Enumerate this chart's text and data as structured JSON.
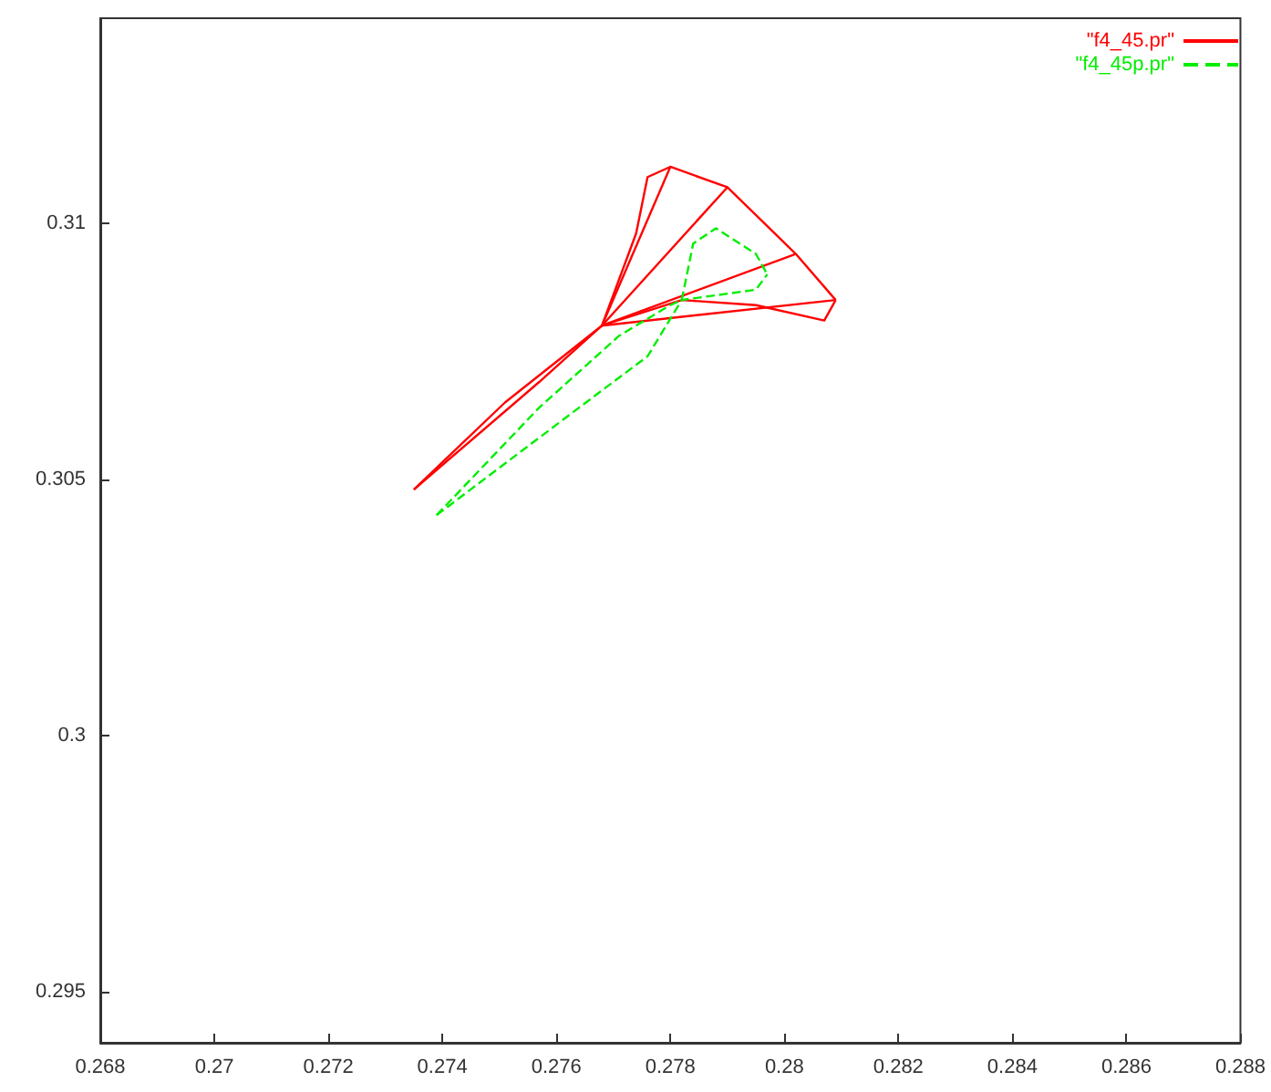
{
  "chart_data": {
    "type": "line",
    "xlim": [
      0.268,
      0.288
    ],
    "ylim": [
      0.294,
      0.314
    ],
    "xticks": [
      0.268,
      0.27,
      0.272,
      0.274,
      0.276,
      0.278,
      0.28,
      0.282,
      0.284,
      0.286,
      0.288
    ],
    "yticks": [
      0.295,
      0.3,
      0.305,
      0.31
    ],
    "grid": false,
    "legend": "top right",
    "marker": "none",
    "series": [
      {
        "name": "\"f4_45.pr\"",
        "color": "#ff0000",
        "line_style": "solid",
        "x": [
          0.2735,
          0.2757,
          0.2768,
          0.2774,
          0.2776,
          0.278,
          0.279,
          0.2802,
          0.2809
        ],
        "values": [
          0.3048,
          0.3069,
          0.308,
          0.3098,
          0.3109,
          0.3111,
          0.3107,
          0.3094,
          0.3085
        ]
      },
      {
        "color": "#ff0000",
        "line_style": "solid",
        "x": [
          0.2735,
          0.2751,
          0.2768,
          0.2782,
          0.2795,
          0.2807,
          0.2809
        ],
        "values": [
          0.3048,
          0.3065,
          0.308,
          0.3085,
          0.3084,
          0.3081,
          0.3085
        ]
      },
      {
        "color": "#ff0000",
        "line_style": "solid",
        "x": [
          0.2768,
          0.278
        ],
        "values": [
          0.308,
          0.3111
        ]
      },
      {
        "color": "#ff0000",
        "line_style": "solid",
        "x": [
          0.2768,
          0.279
        ],
        "values": [
          0.308,
          0.3107
        ]
      },
      {
        "color": "#ff0000",
        "line_style": "solid",
        "x": [
          0.2768,
          0.2802
        ],
        "values": [
          0.308,
          0.3094
        ]
      },
      {
        "color": "#ff0000",
        "line_style": "solid",
        "x": [
          0.2768,
          0.2809
        ],
        "values": [
          0.308,
          0.3085
        ]
      },
      {
        "name": "\"f4_45p.pr\"",
        "color": "#00ee00",
        "line_style": "dashed",
        "x": [
          0.2739,
          0.2757,
          0.2771,
          0.278,
          0.2782,
          0.2784,
          0.2788,
          0.2795,
          0.2797
        ],
        "values": [
          0.3043,
          0.3064,
          0.3078,
          0.3084,
          0.3085,
          0.3096,
          0.3099,
          0.3094,
          0.309
        ]
      },
      {
        "color": "#00ee00",
        "line_style": "dashed",
        "x": [
          0.2739,
          0.2764,
          0.2776,
          0.2782,
          0.2795,
          0.2797
        ],
        "values": [
          0.3043,
          0.3064,
          0.3074,
          0.3085,
          0.3087,
          0.309
        ]
      }
    ]
  }
}
